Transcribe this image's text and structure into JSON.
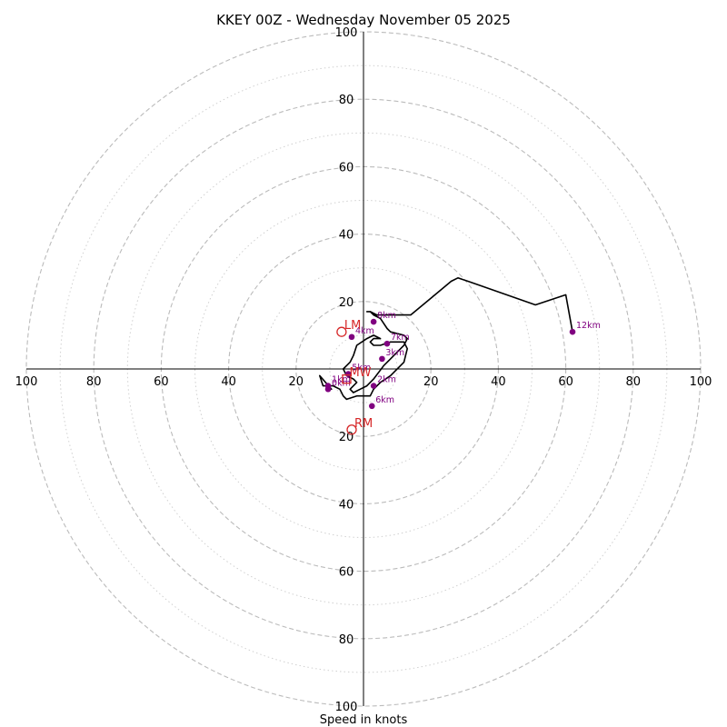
{
  "chart_data": {
    "type": "hodograph",
    "title": "KKEY 00Z - Wednesday November 05 2025",
    "xlabel": "Speed in knots",
    "units": "knots",
    "max_speed": 100,
    "ring_major": [
      20,
      40,
      60,
      80,
      100
    ],
    "ring_minor": [
      10,
      30,
      50,
      70,
      90
    ],
    "tick_labels": {
      "x_left": [
        "100",
        "80",
        "60",
        "40",
        "20"
      ],
      "x_right": [
        "20",
        "40",
        "60",
        "80",
        "100"
      ],
      "y_up": [
        "20",
        "40",
        "60",
        "80",
        "100"
      ],
      "y_down": [
        "20",
        "40",
        "60",
        "80",
        "100"
      ]
    },
    "colors": {
      "trace": "#000000",
      "height_markers": "#800080",
      "storm_motion": "#d62728",
      "ring": "#bbbbbb",
      "axis": "#000000"
    },
    "trace": {
      "name": "wind profile",
      "u": [
        -11,
        -9.5,
        -13,
        -12,
        -9,
        -7,
        -6,
        -5,
        -2,
        2,
        3,
        5,
        8,
        12,
        13,
        12,
        10,
        8,
        5,
        4,
        3,
        2,
        3,
        4,
        5,
        3,
        1,
        -2,
        -3,
        -4,
        -6,
        -5,
        -3,
        -2,
        -4,
        -3,
        -1,
        1,
        3,
        6,
        8,
        10,
        12,
        13,
        12,
        8,
        7,
        5,
        3,
        2,
        1,
        2,
        4,
        9,
        14,
        20,
        26,
        28,
        31,
        51,
        60,
        62
      ],
      "v": [
        -5,
        -6,
        -2,
        -5,
        -5,
        -6,
        -8,
        -9,
        -8,
        -8,
        -6,
        -4,
        -2,
        2,
        6,
        8,
        8,
        8,
        7,
        7,
        7,
        8,
        9,
        9,
        9,
        10,
        9,
        7,
        4,
        2,
        0,
        -2,
        -3,
        -4,
        -6,
        -7,
        -6,
        -5,
        -3,
        1,
        3,
        5,
        7,
        9,
        10,
        11,
        12,
        15,
        16,
        17,
        17,
        17,
        16,
        16,
        16,
        21,
        26,
        27,
        26,
        19,
        22,
        11
      ]
    },
    "height_markers": [
      {
        "label": "0km",
        "u": -10.5,
        "v": -6
      },
      {
        "label": "1km",
        "u": -10.5,
        "v": -5
      },
      {
        "label": "2km",
        "u": 3,
        "v": -5
      },
      {
        "label": "3km",
        "u": 5.5,
        "v": 3
      },
      {
        "label": "4km",
        "u": -3.5,
        "v": 9.5
      },
      {
        "label": "5km",
        "u": -4.5,
        "v": -1.5
      },
      {
        "label": "6km",
        "u": 2.5,
        "v": -11
      },
      {
        "label": "7km",
        "u": 7,
        "v": 7.5
      },
      {
        "label": "8km",
        "u": 3,
        "v": 14
      },
      {
        "label": "12km",
        "u": 62,
        "v": 11
      }
    ],
    "storm_motion": [
      {
        "label": "LM",
        "u": -6.5,
        "v": 11,
        "marker": "circle"
      },
      {
        "label": "MW",
        "u": -5,
        "v": -3,
        "marker": "square"
      },
      {
        "label": "RM",
        "u": -3.5,
        "v": -18,
        "marker": "circle"
      }
    ]
  }
}
